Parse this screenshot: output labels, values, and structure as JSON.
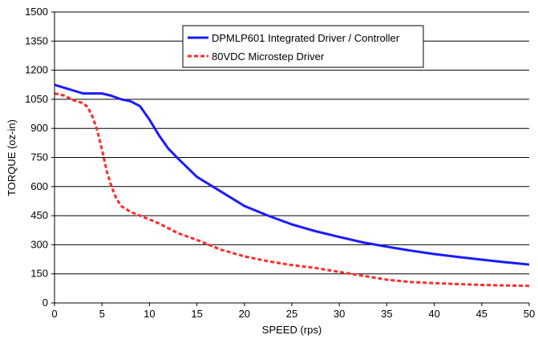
{
  "chart_data": {
    "type": "line",
    "title": "",
    "xlabel": "SPEED (rps)",
    "ylabel": "TORQUE (oz-in)",
    "xlim": [
      0,
      50
    ],
    "ylim": [
      0,
      1500
    ],
    "xticks": [
      0,
      5,
      10,
      15,
      20,
      25,
      30,
      35,
      40,
      45,
      50
    ],
    "yticks": [
      0,
      150,
      300,
      450,
      600,
      750,
      900,
      1050,
      1200,
      1350,
      1500
    ],
    "grid": "horizontal",
    "legend_position": "top-right",
    "series": [
      {
        "name": "DPMLP601 Integrated Driver / Controller",
        "color": "#1a1aff",
        "style": "solid",
        "x": [
          0,
          1,
          2,
          3,
          4,
          5,
          6,
          7,
          8,
          9,
          10,
          11,
          12,
          13,
          15,
          17.5,
          20,
          22.5,
          25,
          27.5,
          30,
          32.5,
          35,
          37.5,
          40,
          42.5,
          45,
          47.5,
          50
        ],
        "y": [
          1125,
          1110,
          1095,
          1080,
          1080,
          1080,
          1068,
          1050,
          1040,
          1015,
          945,
          865,
          795,
          745,
          650,
          575,
          500,
          450,
          405,
          370,
          340,
          312,
          290,
          270,
          252,
          237,
          223,
          210,
          198
        ]
      },
      {
        "name": "80VDC Microstep Driver",
        "color": "#ff2a2a",
        "style": "dashed",
        "x": [
          0,
          1,
          2,
          3,
          3.5,
          4,
          4.5,
          5,
          5.5,
          6,
          6.5,
          7,
          8,
          9,
          10,
          11,
          12,
          13,
          15,
          17.5,
          20,
          22.5,
          25,
          27.5,
          30,
          32.5,
          35,
          37.5,
          40,
          42.5,
          45,
          47.5,
          50
        ],
        "y": [
          1080,
          1070,
          1045,
          1030,
          1010,
          960,
          890,
          790,
          680,
          600,
          540,
          500,
          470,
          450,
          430,
          410,
          385,
          360,
          325,
          275,
          240,
          215,
          195,
          180,
          160,
          140,
          120,
          108,
          102,
          97,
          93,
          90,
          88
        ]
      }
    ]
  }
}
